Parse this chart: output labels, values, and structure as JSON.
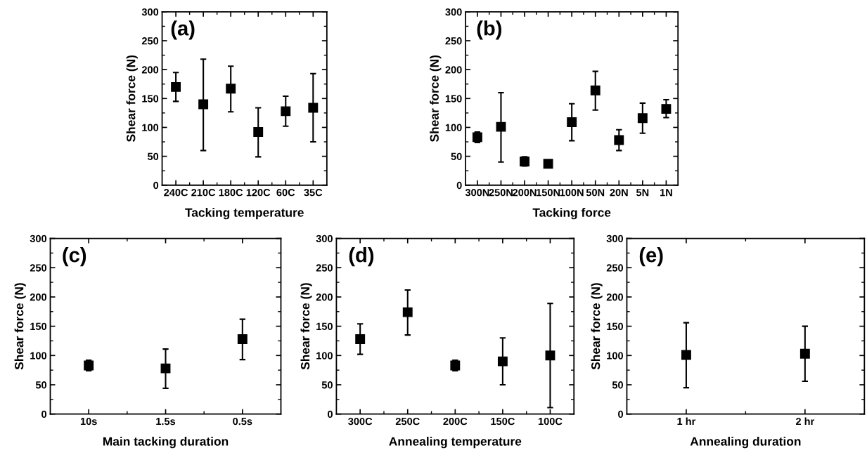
{
  "chart_data": [
    {
      "type": "scatter",
      "annotations": [
        "(a)"
      ],
      "xlabel": "Tacking temperature",
      "ylabel": "Shear force (N)",
      "categories": [
        "240C",
        "210C",
        "180C",
        "120C",
        "60C",
        "35C"
      ],
      "values": [
        170,
        140,
        167,
        92,
        128,
        134
      ],
      "errors": [
        [
          145,
          195
        ],
        [
          60,
          218
        ],
        [
          127,
          206
        ],
        [
          49,
          134
        ],
        [
          102,
          154
        ],
        [
          75,
          193
        ]
      ],
      "color": "#000000",
      "marker": "square",
      "ylim": [
        0,
        300
      ],
      "yticks": [
        0,
        50,
        100,
        150,
        200,
        250,
        300
      ],
      "grid": false,
      "legend": false
    },
    {
      "type": "scatter",
      "annotations": [
        "(b)"
      ],
      "xlabel": "Tacking force",
      "ylabel": "Shear force (N)",
      "categories": [
        "300N",
        "250N",
        "200N",
        "150N",
        "100N",
        "50N",
        "20N",
        "5N",
        "1N"
      ],
      "values": [
        83,
        101,
        41,
        37,
        109,
        164,
        78,
        116,
        132
      ],
      "errors": [
        [
          74,
          92
        ],
        [
          40,
          160
        ],
        [
          33,
          49
        ],
        null,
        [
          77,
          141
        ],
        [
          130,
          197
        ],
        [
          60,
          96
        ],
        [
          90,
          142
        ],
        [
          117,
          148
        ]
      ],
      "color": "#000000",
      "marker": "square",
      "ylim": [
        0,
        300
      ],
      "yticks": [
        0,
        50,
        100,
        150,
        200,
        250,
        300
      ],
      "grid": false,
      "legend": false
    },
    {
      "type": "scatter",
      "annotations": [
        "(c)"
      ],
      "xlabel": "Main tacking duration",
      "ylabel": "Shear force (N)",
      "categories": [
        "10s",
        "1.5s",
        "0.5s"
      ],
      "values": [
        83,
        78,
        128
      ],
      "errors": [
        [
          74,
          92
        ],
        [
          44,
          111
        ],
        [
          93,
          162
        ]
      ],
      "color": "#000000",
      "marker": "square",
      "ylim": [
        0,
        300
      ],
      "yticks": [
        0,
        50,
        100,
        150,
        200,
        250,
        300
      ],
      "grid": false,
      "legend": false
    },
    {
      "type": "scatter",
      "annotations": [
        "(d)"
      ],
      "xlabel": "Annealing temperature",
      "ylabel": "Shear force (N)",
      "categories": [
        "300C",
        "250C",
        "200C",
        "150C",
        "100C"
      ],
      "values": [
        128,
        174,
        83,
        90,
        100
      ],
      "errors": [
        [
          102,
          154
        ],
        [
          135,
          212
        ],
        [
          74,
          92
        ],
        [
          50,
          130
        ],
        [
          11,
          189
        ]
      ],
      "color": "#000000",
      "marker": "square",
      "ylim": [
        0,
        300
      ],
      "yticks": [
        0,
        50,
        100,
        150,
        200,
        250,
        300
      ],
      "grid": false,
      "legend": false
    },
    {
      "type": "scatter",
      "annotations": [
        "(e)"
      ],
      "xlabel": "Annealing duration",
      "ylabel": "Shear force (N)",
      "categories": [
        "1 hr",
        "2 hr"
      ],
      "values": [
        101,
        103
      ],
      "errors": [
        [
          45,
          156
        ],
        [
          56,
          150
        ]
      ],
      "color": "#000000",
      "marker": "square",
      "ylim": [
        0,
        300
      ],
      "yticks": [
        0,
        50,
        100,
        150,
        200,
        250,
        300
      ],
      "grid": false,
      "legend": false
    }
  ]
}
